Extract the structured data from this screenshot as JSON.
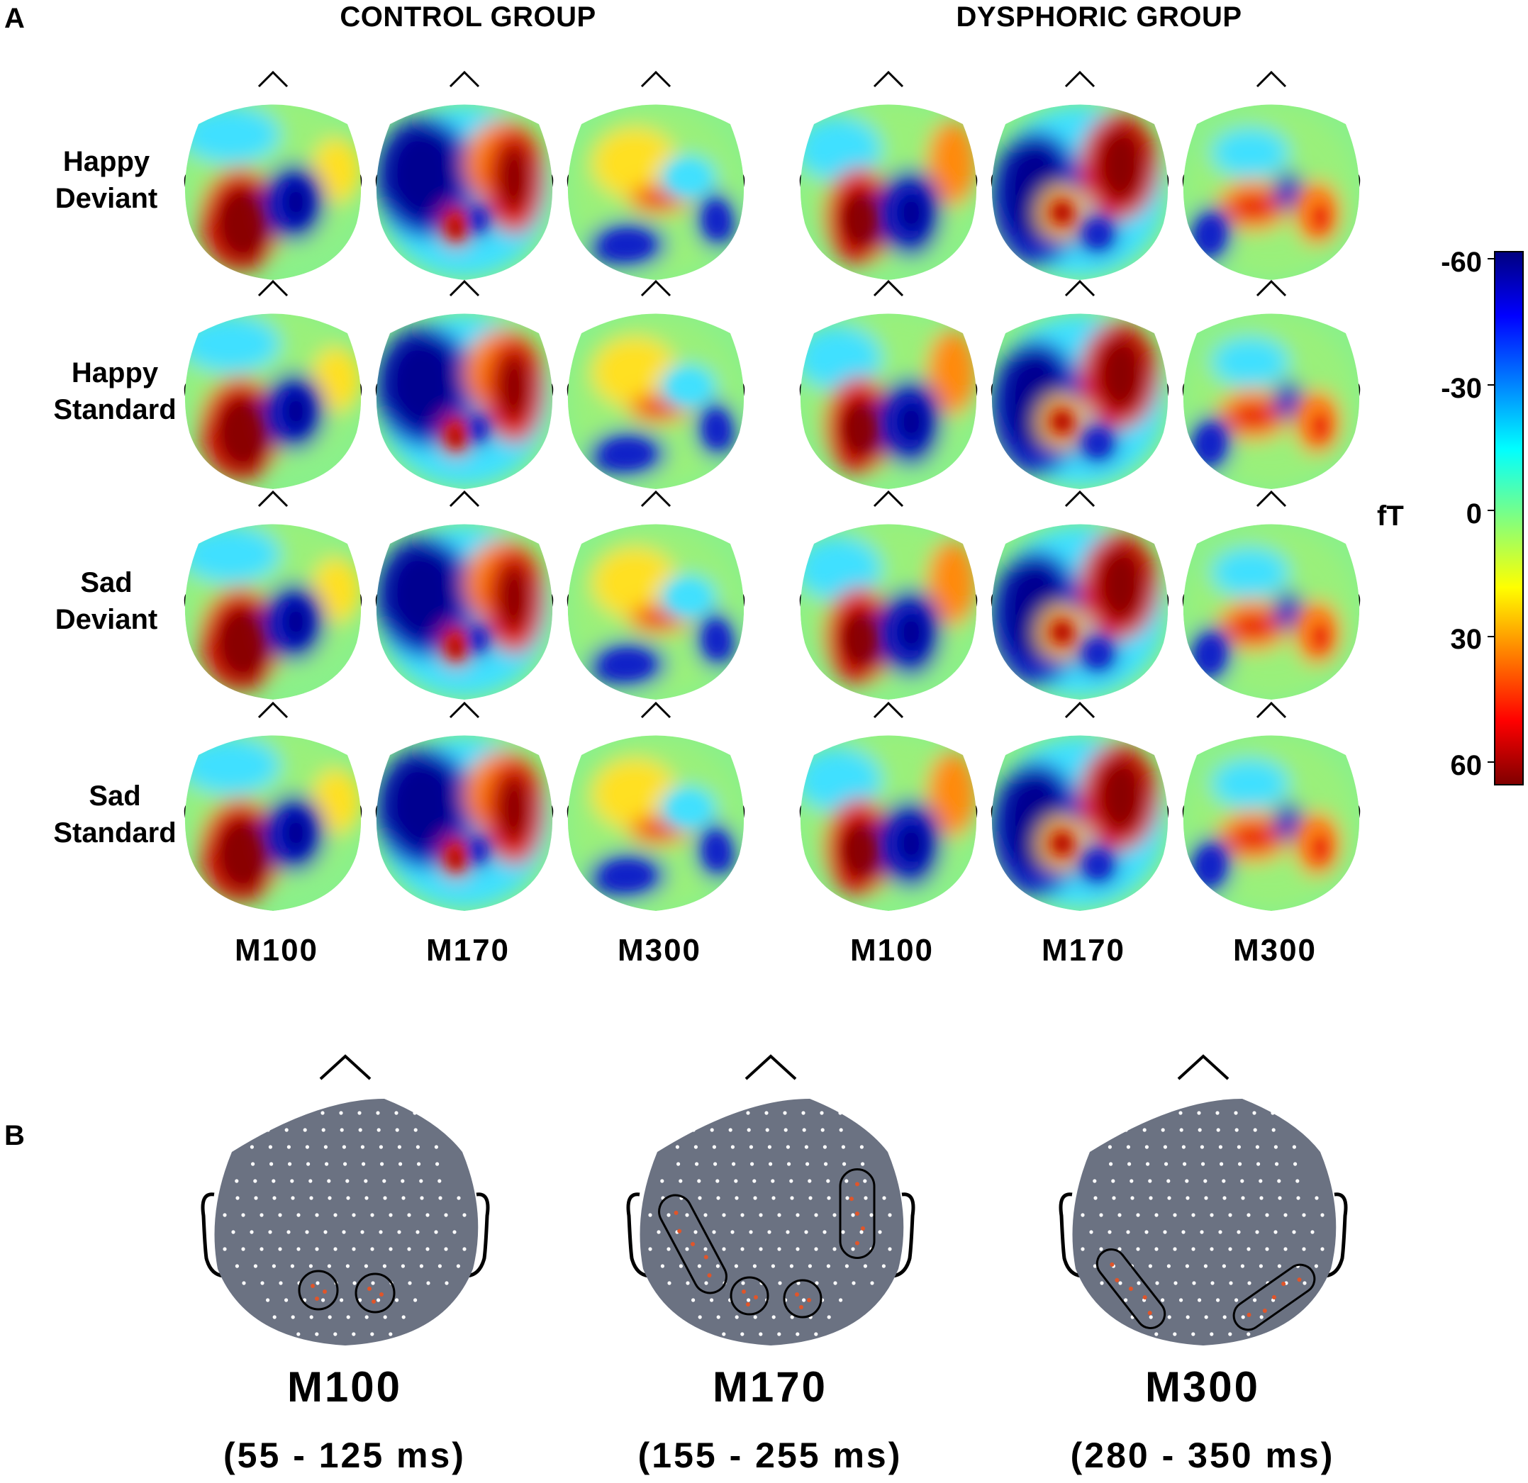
{
  "panel_a": {
    "letter": "A",
    "groups": [
      {
        "title": "CONTROL GROUP",
        "components": [
          "M100",
          "M170",
          "M300"
        ]
      },
      {
        "title": "DYSPHORIC GROUP",
        "components": [
          "M100",
          "M170",
          "M300"
        ]
      }
    ],
    "rows": [
      {
        "label": "Happy\nDeviant"
      },
      {
        "label": "Happy\nStandard"
      },
      {
        "label": "Sad\nDeviant"
      },
      {
        "label": "Sad\nStandard"
      }
    ],
    "colorbar": {
      "unit": "fT",
      "ticks": [
        "-60",
        "-30",
        "0",
        "30",
        "60"
      ],
      "colors": [
        "#00007f",
        "#0000ff",
        "#00ffff",
        "#ffff00",
        "#ff0000",
        "#7f0000"
      ]
    }
  },
  "panel_b": {
    "letter": "B",
    "components": [
      {
        "name": "M100",
        "window": "(55 - 125 ms)"
      },
      {
        "name": "M170",
        "window": "(155 - 255 ms)"
      },
      {
        "name": "M300",
        "window": "(280 - 350 ms)"
      }
    ],
    "head_color": "#6b7282",
    "sensor_color": "#ffffff",
    "selected_sensor_color": "#e0552a"
  }
}
